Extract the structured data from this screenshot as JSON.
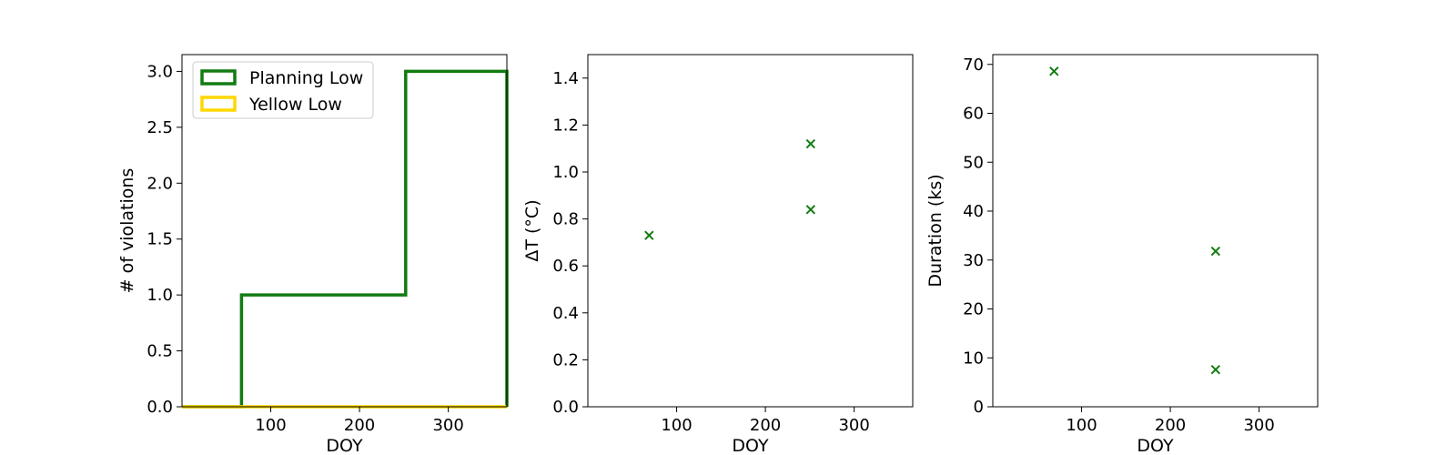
{
  "colors": {
    "planning": "#117c11",
    "yellow": "#ffd700",
    "axes": "#000000"
  },
  "chart_data": [
    {
      "type": "step",
      "xlabel": "DOY",
      "ylabel": "# of violations",
      "xlim": [
        0,
        366
      ],
      "ylim": [
        0,
        3.15
      ],
      "xticks": [
        100,
        200,
        300
      ],
      "yticks": [
        0.0,
        0.5,
        1.0,
        1.5,
        2.0,
        2.5,
        3.0
      ],
      "ytick_labels": [
        "0.0",
        "0.5",
        "1.0",
        "1.5",
        "2.0",
        "2.5",
        "3.0"
      ],
      "legend": {
        "position": "upper-left",
        "entries": [
          "Planning Low",
          "Yellow Low"
        ]
      },
      "series": [
        {
          "name": "Planning Low",
          "color_key": "planning",
          "x": [
            0,
            67,
            67,
            252,
            252,
            366,
            366
          ],
          "y": [
            0,
            0,
            1,
            1,
            3,
            3,
            0
          ]
        },
        {
          "name": "Yellow Low",
          "color_key": "yellow",
          "x": [
            0,
            366
          ],
          "y": [
            0,
            0
          ]
        }
      ]
    },
    {
      "type": "scatter",
      "xlabel": "DOY",
      "ylabel": "ΔT ($^\\circ$C)",
      "ylabel_display": "ΔT (°C)",
      "xlim": [
        0,
        366
      ],
      "ylim": [
        0,
        1.5
      ],
      "xticks": [
        100,
        200,
        300
      ],
      "yticks": [
        0.0,
        0.2,
        0.4,
        0.6,
        0.8,
        1.0,
        1.2,
        1.4
      ],
      "ytick_labels": [
        "0.0",
        "0.2",
        "0.4",
        "0.6",
        "0.8",
        "1.0",
        "1.2",
        "1.4"
      ],
      "series": [
        {
          "color_key": "planning",
          "marker": "x",
          "x": [
            69,
            251,
            251
          ],
          "y": [
            0.73,
            1.12,
            0.84
          ]
        }
      ]
    },
    {
      "type": "scatter",
      "xlabel": "DOY",
      "ylabel": "Duration (ks)",
      "xlim": [
        0,
        366
      ],
      "ylim": [
        0,
        72
      ],
      "xticks": [
        100,
        200,
        300
      ],
      "yticks": [
        0,
        10,
        20,
        30,
        40,
        50,
        60,
        70
      ],
      "ytick_labels": [
        "0",
        "10",
        "20",
        "30",
        "40",
        "50",
        "60",
        "70"
      ],
      "series": [
        {
          "color_key": "planning",
          "marker": "x",
          "x": [
            69,
            251,
            251
          ],
          "y": [
            68.6,
            31.8,
            7.6
          ]
        }
      ]
    }
  ]
}
